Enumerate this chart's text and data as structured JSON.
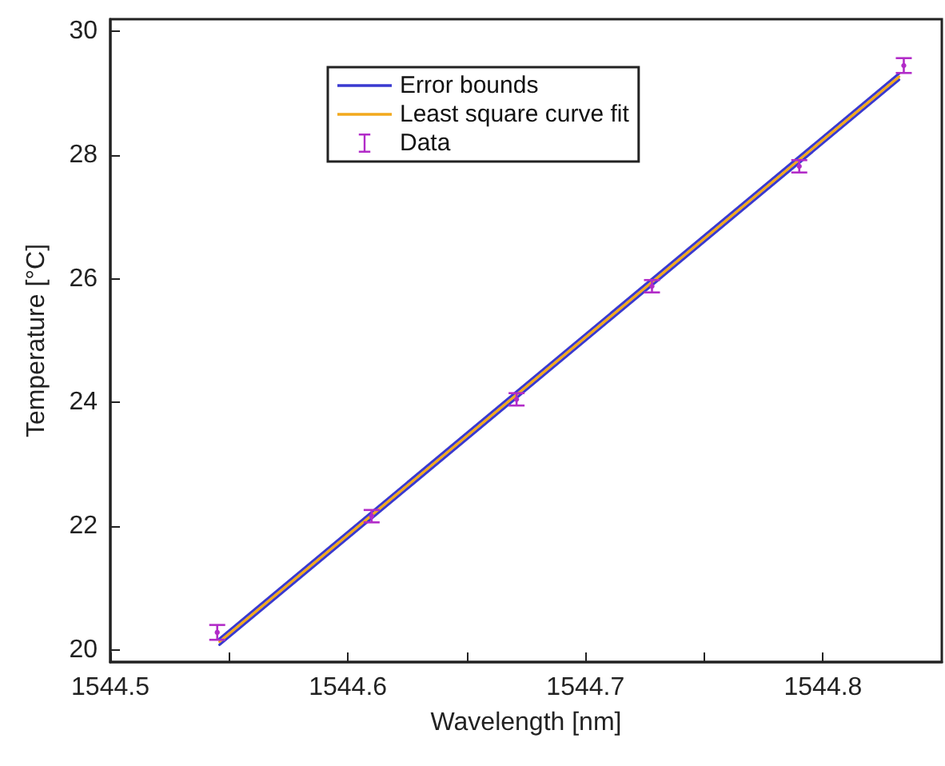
{
  "chart_data": {
    "type": "line",
    "xlabel": "Wavelength [nm]",
    "ylabel": "Temperature [°C]",
    "xlim": [
      1544.5,
      1544.85
    ],
    "ylim": [
      19.8,
      30.2
    ],
    "xticks": [
      1544.5,
      {
        "value": 1544.55,
        "label": null
      },
      1544.6,
      {
        "value": 1544.65,
        "label": null
      },
      1544.7,
      {
        "value": 1544.75,
        "label": null
      },
      1544.8
    ],
    "yticks": [
      20,
      22,
      24,
      26,
      28,
      30
    ],
    "grid": false,
    "legend": "top",
    "line_style": "solid",
    "series": [
      {
        "name": "Error bounds",
        "color": "#3a3ad0",
        "x": [
          1544.546,
          1544.832
        ],
        "values": [
          20.18,
          29.32
        ]
      },
      {
        "color": "#3a3ad0",
        "x": [
          1544.546,
          1544.832
        ],
        "values": [
          20.08,
          29.22
        ]
      },
      {
        "name": "Least square curve fit",
        "color": "#f2a91c",
        "x": [
          1544.546,
          1544.832
        ],
        "values": [
          20.13,
          29.27
        ]
      },
      {
        "name": "Data",
        "type": "scatter",
        "marker": "circle",
        "color": "#b22cc8",
        "x": [
          1544.545,
          1544.61,
          1544.671,
          1544.728,
          1544.79,
          1544.834
        ],
        "values": [
          20.28,
          22.16,
          24.05,
          25.88,
          27.82,
          29.45
        ],
        "errors": [
          0.12,
          0.1,
          0.1,
          0.1,
          0.1,
          0.12
        ]
      }
    ]
  }
}
